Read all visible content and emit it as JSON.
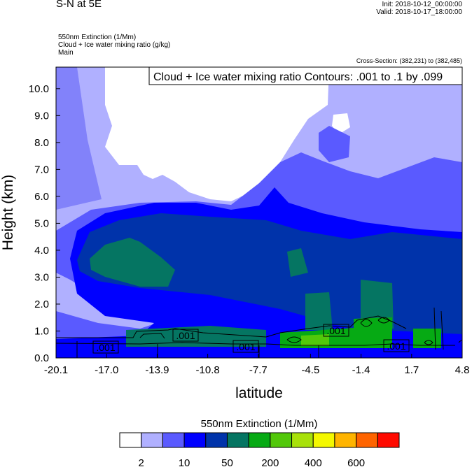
{
  "header": {
    "title": "S-N at 5E",
    "init": "Init: 2018-10-12_00:00:00",
    "valid": "Valid: 2018-10-17_18:00:00",
    "fields": [
      "550nm Extinction   (1/Mm)",
      "Cloud + Ice water mixing ratio   (g/kg)",
      "Main"
    ],
    "cross_section": "Cross-Section: (382,231) to (382,485)"
  },
  "chart_data": {
    "type": "contour",
    "title": "S-N at 5E",
    "xlabel": "latitude",
    "ylabel": "Height (km)",
    "xlim": [
      -20.1,
      4.8
    ],
    "ylim": [
      0,
      10.8
    ],
    "xticks": [
      -20.1,
      -17.0,
      -13.9,
      -10.8,
      -7.7,
      -4.5,
      -1.4,
      1.7,
      4.8
    ],
    "xtick_labels": [
      "-20.1",
      "-17.0",
      "-13.9",
      "-10.8",
      "-7.7",
      "-4.5",
      "-1.4",
      "1.7",
      "4.8"
    ],
    "yticks": [
      0,
      1,
      2,
      3,
      4,
      5,
      6,
      7,
      8,
      9,
      10
    ],
    "ytick_labels": [
      "0.0",
      "1.0",
      "2.0",
      "3.0",
      "4.0",
      "5.0",
      "6.0",
      "7.0",
      "8.0",
      "9.0",
      "10.0"
    ],
    "fill_variable": "550nm Extinction (1/Mm)",
    "contour_legend": "Cloud + Ice water mixing ratio Contours: .001 to .1 by .099",
    "contour_labels": [
      ".001",
      ".001",
      ".001",
      ".001",
      ".001"
    ],
    "colorbar": {
      "title": "550nm Extinction  (1/Mm)",
      "colors": [
        "#ffffff",
        "#b0b0ff",
        "#5a5aff",
        "#0000ff",
        "#0033aa",
        "#057562",
        "#06aa14",
        "#52c80a",
        "#a8e10a",
        "#f4f800",
        "#ffb400",
        "#ff6400",
        "#ff0a00"
      ],
      "labels": [
        "2",
        "10",
        "50",
        "200",
        "400",
        "600"
      ],
      "label_boundaries": [
        1,
        3,
        5,
        7,
        9,
        11
      ]
    }
  }
}
